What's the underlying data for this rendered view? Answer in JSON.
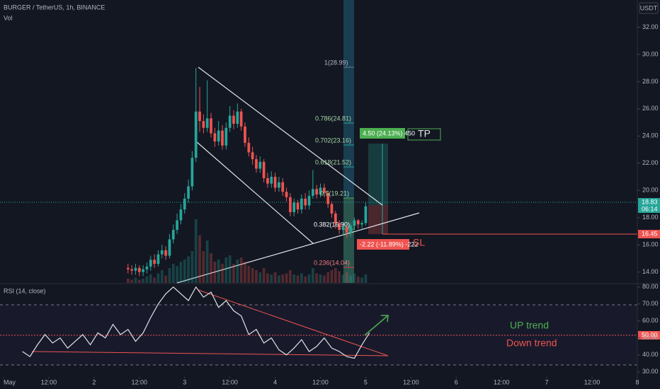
{
  "header": {
    "symbol": "BURGER / TetherUS, 1h, BINANCE",
    "volume_label": "Vol",
    "currency": "USDT",
    "price_badge": "18.83",
    "countdown": "06:14",
    "sl_badge": "16.45",
    "rsi_badge": "50.00"
  },
  "annotations": {
    "fib": [
      "1(28.99)",
      "0.786(24.81)",
      "0.702(23.16)",
      "0.618(21.52)",
      "0.5(19.21)",
      "0.382(16.90)",
      "0.236(14.04)"
    ],
    "target": "4.50 (24.13%) 450",
    "tp": "TP",
    "stop": "-2.22 (-11.89%) -222",
    "sl": "SL",
    "up_trend": "UP trend",
    "down_trend": "Down trend"
  },
  "chart_data": [
    {
      "type": "candlestick",
      "xlim": [
        0,
        168
      ],
      "ylim": [
        13.2,
        34
      ],
      "xticks": [
        {
          "value": 0,
          "label": "May"
        },
        {
          "value": 12,
          "label": "12:00"
        },
        {
          "value": 24,
          "label": "2"
        },
        {
          "value": 36,
          "label": "12:00"
        },
        {
          "value": 48,
          "label": "3"
        },
        {
          "value": 60,
          "label": "12:00"
        },
        {
          "value": 72,
          "label": "4"
        },
        {
          "value": 84,
          "label": "12:00"
        },
        {
          "value": 96,
          "label": "5"
        },
        {
          "value": 108,
          "label": "12:00"
        },
        {
          "value": 120,
          "label": "6"
        },
        {
          "value": 132,
          "label": "12:00"
        },
        {
          "value": 144,
          "label": "7"
        },
        {
          "value": 156,
          "label": "12:00"
        },
        {
          "value": 168,
          "label": "8"
        }
      ],
      "yticks": [
        {
          "value": 14,
          "label": "14.00"
        },
        {
          "value": 16,
          "label": "16.00"
        },
        {
          "value": 18,
          "label": "18.00"
        },
        {
          "value": 20,
          "label": "20.00"
        },
        {
          "value": 22,
          "label": "22.00"
        },
        {
          "value": 24,
          "label": "24.00"
        },
        {
          "value": 26,
          "label": "26.00"
        },
        {
          "value": 28,
          "label": "28.00"
        },
        {
          "value": 30,
          "label": "30.00"
        },
        {
          "value": 32,
          "label": "32.00"
        }
      ],
      "up_color": "#26a69a",
      "down_color": "#ef5350",
      "x": [
        33,
        34,
        35,
        36,
        37,
        38,
        39,
        40,
        41,
        42,
        43,
        44,
        45,
        46,
        47,
        48,
        49,
        50,
        51,
        52,
        53,
        54,
        55,
        56,
        57,
        58,
        59,
        60,
        61,
        62,
        63,
        64,
        65,
        66,
        67,
        68,
        69,
        70,
        71,
        72,
        73,
        74,
        75,
        76,
        77,
        78,
        79,
        80,
        81,
        82,
        83,
        84,
        85,
        86,
        87,
        88,
        89,
        90,
        91,
        92,
        93,
        94,
        95,
        96
      ],
      "open": [
        14.3,
        14.2,
        14.1,
        14.3,
        14.0,
        14.2,
        14.4,
        14.9,
        14.6,
        15.3,
        15.6,
        15.2,
        16.4,
        17.1,
        17.8,
        18.6,
        19.4,
        20.3,
        22.4,
        25.8,
        25.1,
        24.6,
        25.3,
        24.2,
        23.6,
        24.4,
        23.3,
        24.6,
        25.5,
        24.9,
        25.8,
        24.7,
        23.5,
        22.8,
        22.3,
        21.6,
        22.1,
        20.9,
        20.5,
        21.0,
        20.2,
        20.6,
        19.9,
        19.5,
        18.4,
        19.1,
        18.6,
        19.4,
        18.9,
        19.6,
        20.1,
        19.7,
        20.2,
        19.8,
        19.0,
        18.3,
        17.6,
        17.1,
        17.3,
        16.9,
        17.4,
        17.8,
        17.5,
        17.6
      ],
      "high": [
        14.6,
        14.5,
        14.6,
        14.5,
        14.5,
        14.7,
        15.2,
        15.3,
        15.6,
        16.0,
        15.9,
        16.8,
        17.5,
        18.3,
        19.0,
        19.8,
        20.8,
        22.9,
        29.0,
        27.6,
        25.6,
        28.1,
        25.7,
        24.6,
        25.1,
        24.8,
        25.0,
        26.2,
        25.9,
        26.4,
        26.0,
        25.0,
        23.9,
        23.2,
        22.6,
        22.5,
        22.3,
        21.3,
        21.4,
        21.3,
        21.0,
        20.9,
        20.2,
        19.8,
        19.4,
        19.3,
        19.7,
        19.8,
        20.0,
        21.5,
        20.4,
        20.5,
        20.5,
        20.0,
        19.2,
        18.5,
        17.8,
        17.6,
        17.5,
        17.6,
        18.0,
        17.9,
        17.8,
        19.1
      ],
      "low": [
        13.9,
        13.8,
        13.8,
        13.7,
        13.7,
        13.9,
        14.1,
        14.3,
        14.4,
        15.0,
        14.9,
        15.0,
        16.1,
        16.8,
        17.5,
        18.3,
        19.1,
        20.0,
        22.1,
        24.3,
        24.2,
        24.3,
        23.9,
        23.2,
        23.3,
        23.0,
        23.0,
        24.3,
        24.5,
        24.6,
        24.4,
        23.2,
        22.5,
        21.9,
        21.3,
        21.3,
        20.6,
        20.2,
        20.2,
        19.9,
        19.9,
        19.6,
        19.2,
        18.1,
        18.1,
        18.3,
        18.3,
        18.6,
        18.6,
        19.4,
        19.4,
        19.5,
        19.5,
        18.7,
        18.0,
        17.2,
        16.8,
        16.8,
        16.5,
        16.6,
        17.1,
        17.2,
        17.2,
        17.4
      ],
      "close": [
        14.2,
        14.1,
        14.3,
        14.0,
        14.2,
        14.4,
        14.9,
        14.6,
        15.3,
        15.6,
        15.2,
        16.4,
        17.1,
        17.8,
        18.6,
        19.4,
        20.3,
        22.4,
        25.8,
        25.1,
        24.6,
        25.3,
        24.2,
        23.6,
        24.4,
        23.3,
        24.6,
        25.5,
        24.9,
        25.8,
        24.7,
        23.5,
        22.8,
        22.3,
        21.6,
        22.1,
        20.9,
        20.5,
        21.0,
        20.2,
        20.6,
        19.9,
        19.5,
        18.4,
        19.1,
        18.6,
        19.4,
        18.9,
        19.6,
        20.1,
        19.7,
        20.2,
        19.8,
        19.0,
        18.3,
        17.6,
        17.1,
        17.3,
        16.9,
        17.4,
        17.8,
        17.5,
        17.6,
        18.83
      ],
      "volume": [
        4,
        3,
        5,
        3,
        4,
        6,
        8,
        5,
        9,
        12,
        7,
        14,
        18,
        16,
        20,
        22,
        25,
        30,
        60,
        45,
        30,
        40,
        28,
        20,
        22,
        18,
        24,
        26,
        18,
        22,
        24,
        20,
        16,
        14,
        12,
        10,
        14,
        9,
        8,
        10,
        7,
        8,
        9,
        12,
        8,
        7,
        9,
        6,
        8,
        14,
        9,
        8,
        7,
        10,
        12,
        14,
        11,
        8,
        10,
        7,
        9,
        6,
        5,
        8
      ]
    },
    {
      "type": "line",
      "title": "RSI (14, close)",
      "xlim": [
        0,
        168
      ],
      "ylim": [
        27,
        82
      ],
      "color": "#e1e3e8",
      "yticks": [
        {
          "value": 30,
          "label": "30.00"
        },
        {
          "value": 40,
          "label": "40.00"
        },
        {
          "value": 50,
          "label": "50.00"
        },
        {
          "value": 60,
          "label": "60.00"
        },
        {
          "value": 70,
          "label": "70.00"
        },
        {
          "value": 80,
          "label": "80.00"
        }
      ],
      "x": [
        5,
        7,
        9,
        11,
        13,
        15,
        17,
        19,
        21,
        23,
        25,
        27,
        29,
        31,
        33,
        35,
        37,
        39,
        41,
        43,
        45,
        47,
        49,
        51,
        53,
        55,
        57,
        59,
        61,
        63,
        65,
        67,
        69,
        71,
        73,
        75,
        77,
        79,
        81,
        83,
        85,
        87,
        89,
        91,
        93,
        95,
        97
      ],
      "values": [
        42,
        39,
        46,
        52,
        47,
        50,
        44,
        48,
        52,
        46,
        53,
        50,
        58,
        52,
        55,
        48,
        53,
        62,
        70,
        76,
        80,
        76,
        72,
        80,
        74,
        77,
        68,
        72,
        66,
        63,
        52,
        55,
        47,
        50,
        43,
        40,
        44,
        49,
        42,
        45,
        50,
        44,
        42,
        39,
        38,
        46,
        53
      ]
    }
  ]
}
